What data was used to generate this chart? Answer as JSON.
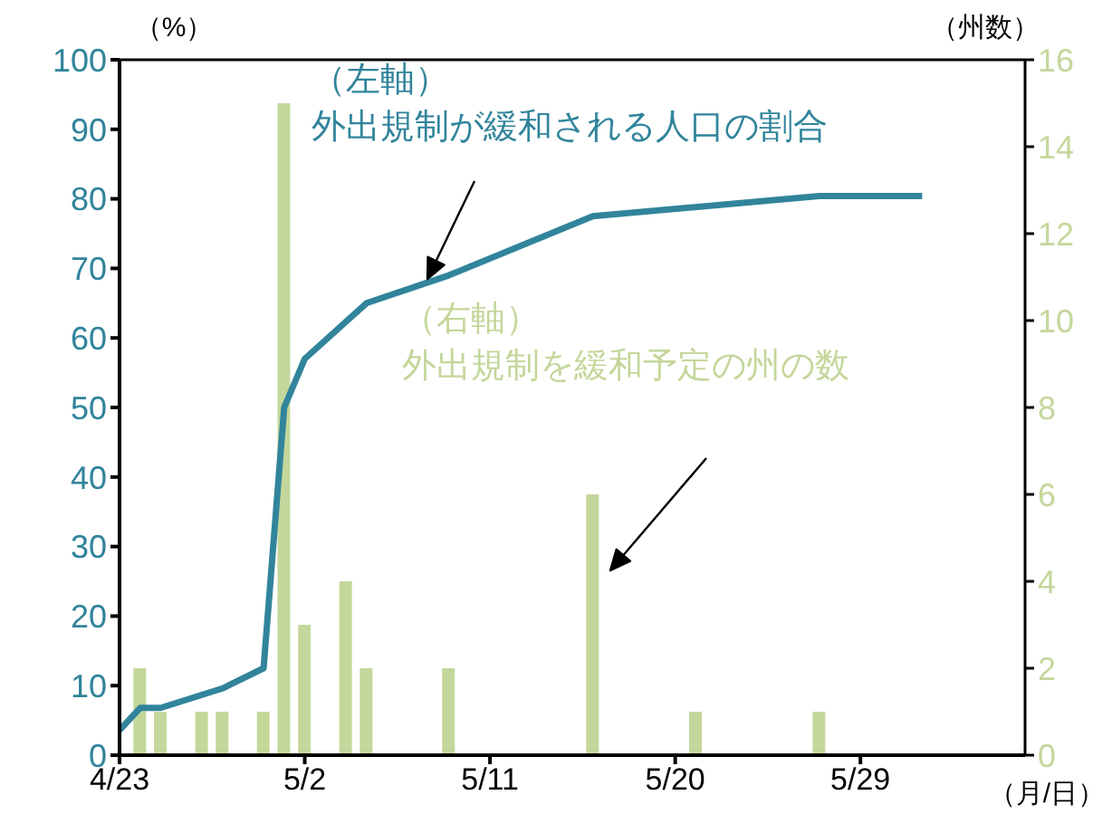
{
  "chart_data": {
    "type": "bar",
    "xlabel": "（月/日）",
    "ylabel": "（%）",
    "y2label": "（州数）",
    "xlim": [
      "--04-23",
      "--06-06"
    ],
    "xticks": [
      {
        "value": "--04-23",
        "label": "4/23"
      },
      {
        "value": "--05-02",
        "label": "5/2"
      },
      {
        "value": "--05-11",
        "label": "5/11"
      },
      {
        "value": "--05-20",
        "label": "5/20"
      },
      {
        "value": "--05-29",
        "label": "5/29"
      }
    ],
    "ylim": [
      0,
      100
    ],
    "yticks": [
      0,
      10,
      20,
      30,
      40,
      50,
      60,
      70,
      80,
      90,
      100
    ],
    "y2lim": [
      0,
      16
    ],
    "y2ticks": [
      0,
      2,
      4,
      6,
      8,
      10,
      12,
      14,
      16
    ],
    "series": [
      {
        "type": "line",
        "color": "#31849b",
        "x": [
          "--04-23",
          "--04-24",
          "--04-25",
          "--04-28",
          "--04-30",
          "--05-01",
          "--05-02",
          "--05-05",
          "--05-09",
          "--05-16",
          "--05-27",
          "--06-01"
        ],
        "values": [
          3.6,
          6.8,
          6.8,
          9.6,
          12.5,
          50,
          57,
          65,
          69,
          77.5,
          80.4,
          80.4
        ]
      },
      {
        "axis": "y2",
        "color": "#c4d79b",
        "x": [
          "--04-24",
          "--04-25",
          "--04-27",
          "--04-28",
          "--04-30",
          "--05-01",
          "--05-02",
          "--05-04",
          "--05-05",
          "--05-09",
          "--05-16",
          "--05-21",
          "--05-27"
        ],
        "values": [
          2,
          1,
          1,
          1,
          1,
          15,
          3,
          4,
          2,
          2,
          6,
          1,
          1
        ]
      }
    ],
    "annotations": [
      "（左軸）外出規制が緩和される人口の割合",
      "（右軸）外出規制を緩和予定の州の数"
    ],
    "grid": false,
    "legend": false
  }
}
